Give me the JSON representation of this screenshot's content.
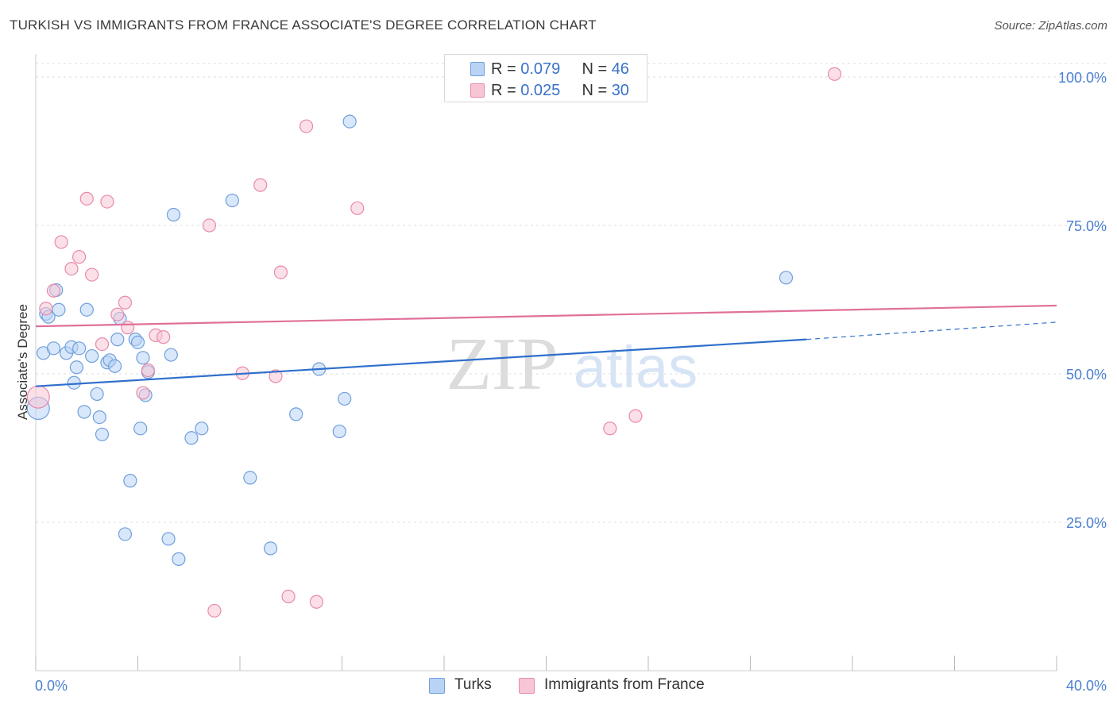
{
  "title": "TURKISH VS IMMIGRANTS FROM FRANCE ASSOCIATE'S DEGREE CORRELATION CHART",
  "source": "Source: ZipAtlas.com",
  "colors": {
    "series1_fill": "#b9d3f5",
    "series1_stroke": "#6f9fdc",
    "series1_line": "#2f6fcc",
    "series2_fill": "#f7c6d5",
    "series2_stroke": "#e98aa8",
    "series2_line": "#e0709a",
    "tick_text": "#4a7fd0"
  },
  "legend": {
    "row1": {
      "r_label": "R = ",
      "r_value": "0.079",
      "n_label": "N = ",
      "n_value": "46"
    },
    "row2": {
      "r_label": "R = ",
      "r_value": "0.025",
      "n_label": "N = ",
      "n_value": "30"
    }
  },
  "bottom_legend": {
    "series1": "Turks",
    "series2": "Immigrants from France"
  },
  "chart_data": {
    "type": "scatter",
    "xlabel": "",
    "ylabel": "Associate's Degree",
    "xlim": [
      0,
      40
    ],
    "ylim": [
      0,
      100
    ],
    "x_tick_labels": [
      "0.0%",
      "40.0%"
    ],
    "y_tick_labels": [
      "25.0%",
      "50.0%",
      "75.0%",
      "100.0%"
    ],
    "y_ticks": [
      25,
      50,
      75,
      100
    ],
    "watermark": {
      "zip": "ZIP",
      "atlas": "atlas"
    },
    "series": [
      {
        "name": "Turks",
        "trend": {
          "x": [
            0,
            30.2
          ],
          "y": [
            47.9,
            55.8
          ],
          "dashed_to": [
            40,
            58.7
          ]
        },
        "points": [
          [
            0.1,
            44.2
          ],
          [
            0.3,
            53.5
          ],
          [
            0.4,
            60.1
          ],
          [
            0.5,
            59.6
          ],
          [
            0.7,
            54.3
          ],
          [
            0.8,
            64.1
          ],
          [
            0.9,
            60.8
          ],
          [
            1.2,
            53.5
          ],
          [
            1.4,
            54.5
          ],
          [
            1.5,
            48.5
          ],
          [
            1.6,
            51.1
          ],
          [
            1.7,
            54.3
          ],
          [
            1.9,
            43.6
          ],
          [
            2.0,
            60.8
          ],
          [
            2.2,
            53.0
          ],
          [
            2.4,
            46.6
          ],
          [
            2.5,
            42.7
          ],
          [
            2.6,
            39.8
          ],
          [
            2.8,
            51.9
          ],
          [
            2.9,
            52.3
          ],
          [
            3.1,
            51.3
          ],
          [
            3.2,
            55.8
          ],
          [
            3.3,
            59.3
          ],
          [
            3.5,
            23.0
          ],
          [
            3.7,
            32.0
          ],
          [
            3.9,
            55.8
          ],
          [
            4.0,
            55.3
          ],
          [
            4.1,
            40.8
          ],
          [
            4.2,
            52.7
          ],
          [
            4.3,
            46.4
          ],
          [
            4.4,
            50.3
          ],
          [
            5.2,
            22.2
          ],
          [
            5.3,
            53.2
          ],
          [
            5.4,
            76.8
          ],
          [
            5.6,
            18.8
          ],
          [
            6.1,
            39.2
          ],
          [
            6.5,
            40.8
          ],
          [
            7.7,
            79.2
          ],
          [
            8.4,
            32.5
          ],
          [
            9.2,
            20.6
          ],
          [
            10.2,
            43.2
          ],
          [
            11.1,
            50.8
          ],
          [
            11.9,
            40.3
          ],
          [
            12.1,
            45.8
          ],
          [
            12.3,
            92.5
          ],
          [
            29.4,
            66.2
          ]
        ]
      },
      {
        "name": "Immigrants from France",
        "trend": {
          "x": [
            0,
            40
          ],
          "y": [
            58.0,
            61.5
          ]
        },
        "points": [
          [
            0.1,
            46.1
          ],
          [
            0.4,
            61.0
          ],
          [
            0.7,
            64.0
          ],
          [
            1.0,
            72.2
          ],
          [
            1.4,
            67.7
          ],
          [
            1.7,
            69.7
          ],
          [
            2.0,
            79.5
          ],
          [
            2.2,
            66.7
          ],
          [
            2.6,
            55.0
          ],
          [
            2.8,
            79.0
          ],
          [
            3.2,
            60.0
          ],
          [
            3.5,
            62.0
          ],
          [
            3.6,
            57.8
          ],
          [
            4.2,
            46.8
          ],
          [
            4.4,
            50.6
          ],
          [
            4.7,
            56.5
          ],
          [
            5.0,
            56.2
          ],
          [
            6.8,
            75.0
          ],
          [
            7.0,
            10.1
          ],
          [
            8.1,
            50.1
          ],
          [
            8.8,
            81.8
          ],
          [
            9.4,
            49.6
          ],
          [
            9.6,
            67.1
          ],
          [
            9.9,
            12.5
          ],
          [
            10.6,
            91.7
          ],
          [
            11.0,
            11.6
          ],
          [
            12.6,
            77.9
          ],
          [
            22.5,
            40.8
          ],
          [
            23.5,
            42.9
          ],
          [
            31.3,
            100.5
          ]
        ]
      }
    ]
  }
}
